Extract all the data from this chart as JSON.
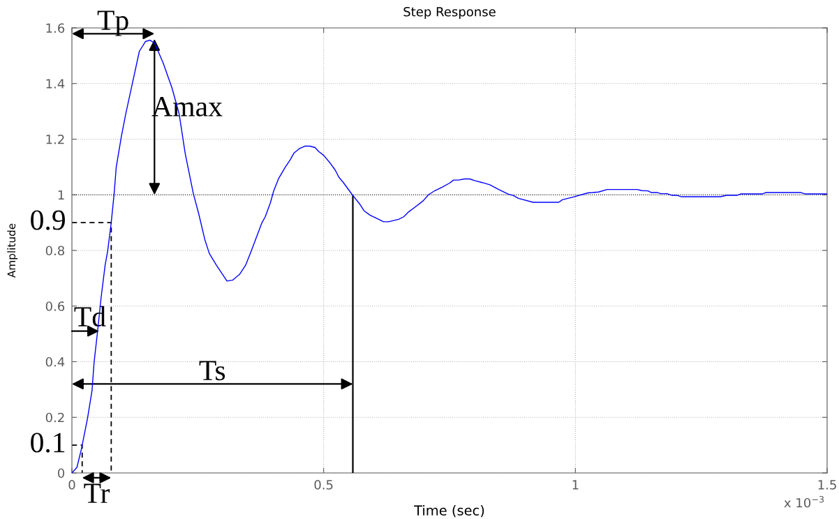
{
  "chart_data": {
    "type": "line",
    "title": "Step Response",
    "xlabel": "Time (sec)",
    "ylabel": "Amplitude",
    "x": [
      0,
      0.01,
      0.019,
      0.031,
      0.04,
      0.044,
      0.051,
      0.058,
      0.066,
      0.071,
      0.078,
      0.084,
      0.088,
      0.098,
      0.107,
      0.118,
      0.134,
      0.146,
      0.155,
      0.164,
      0.181,
      0.199,
      0.213,
      0.225,
      0.241,
      0.252,
      0.264,
      0.273,
      0.287,
      0.308,
      0.319,
      0.333,
      0.345,
      0.356,
      0.377,
      0.384,
      0.394,
      0.401,
      0.411,
      0.424,
      0.434,
      0.441,
      0.451,
      0.463,
      0.473,
      0.483,
      0.49,
      0.5,
      0.513,
      0.523,
      0.53,
      0.54,
      0.557,
      0.572,
      0.58,
      0.592,
      0.607,
      0.619,
      0.629,
      0.649,
      0.659,
      0.669,
      0.681,
      0.698,
      0.708,
      0.721,
      0.736,
      0.75,
      0.758,
      0.768,
      0.78,
      0.79,
      0.8,
      0.815,
      0.83,
      0.847,
      0.867,
      0.877,
      0.887,
      0.916,
      0.967,
      0.974,
      0.996,
      1.025,
      1.034,
      1.046,
      1.063,
      1.123,
      1.132,
      1.144,
      1.151,
      1.163,
      1.17,
      1.182,
      1.192,
      1.202,
      1.211,
      1.288,
      1.3,
      1.321,
      1.328,
      1.371,
      1.378,
      1.448,
      1.457,
      1.5
    ],
    "series": [
      {
        "color": "#0000ff",
        "values": [
          0,
          0.02,
          0.087,
          0.196,
          0.296,
          0.396,
          0.509,
          0.63,
          0.747,
          0.797,
          0.898,
          1.006,
          1.098,
          1.207,
          1.291,
          1.383,
          1.516,
          1.551,
          1.556,
          1.546,
          1.475,
          1.383,
          1.291,
          1.149,
          1.006,
          0.931,
          0.839,
          0.789,
          0.747,
          0.69,
          0.693,
          0.714,
          0.747,
          0.797,
          0.898,
          0.921,
          0.97,
          1.015,
          1.06,
          1.1,
          1.127,
          1.15,
          1.165,
          1.175,
          1.175,
          1.17,
          1.156,
          1.142,
          1.114,
          1.089,
          1.064,
          1.042,
          1.0,
          0.966,
          0.943,
          0.927,
          0.914,
          0.903,
          0.903,
          0.912,
          0.921,
          0.939,
          0.955,
          0.979,
          1.0,
          1.015,
          1.028,
          1.042,
          1.053,
          1.053,
          1.057,
          1.057,
          1.051,
          1.044,
          1.036,
          1.02,
          1.002,
          0.997,
          0.987,
          0.973,
          0.973,
          0.982,
          0.992,
          1.007,
          1.008,
          1.01,
          1.019,
          1.019,
          1.015,
          1.014,
          1.008,
          1.008,
          1.004,
          1.004,
          0.998,
          0.998,
          0.993,
          0.993,
          0.998,
          0.998,
          1.003,
          1.003,
          1.008,
          1.008,
          1.003,
          1.003
        ]
      }
    ],
    "xlim": [
      0,
      1.5
    ],
    "ylim": [
      0,
      1.6
    ],
    "xticks": [
      0,
      0.5,
      1,
      1.5
    ],
    "yticks": [
      0,
      0.2,
      0.4,
      0.6,
      0.8,
      1,
      1.2,
      1.4,
      1.6
    ],
    "grid": true,
    "ref_lines": [
      {
        "axis": "y",
        "value": 1,
        "color": "#000000",
        "line_style": "dotted"
      },
      {
        "axis": "y",
        "value": 0.9,
        "label": "0.9",
        "color": "#000000",
        "line_style": "dashed"
      },
      {
        "axis": "y",
        "value": 0.1,
        "label": "0.1",
        "color": "#000000",
        "line_style": "dashed"
      },
      {
        "axis": "x",
        "value": 0.558,
        "color": "#000000",
        "line_style": "solid"
      }
    ],
    "annotations": [
      "Tp",
      {
        "text": "Amax",
        "x": 0.164,
        "y": 1.56
      },
      {
        "text": "Td",
        "x": 0.054,
        "y": 0.51
      },
      "Tr",
      "Ts",
      "x 10$^{−3}$"
    ]
  }
}
